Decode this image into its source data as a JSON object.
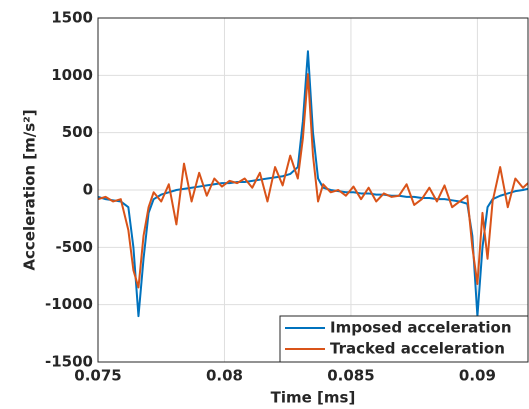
{
  "chart_data": {
    "type": "line",
    "xlabel": "Time [ms]",
    "ylabel": "Acceleration [m/s²]",
    "x": [
      0.075,
      0.0753,
      0.0756,
      0.0759,
      0.0762,
      0.0764,
      0.0766,
      0.0768,
      0.077,
      0.0772,
      0.0775,
      0.0778,
      0.0781,
      0.0784,
      0.0787,
      0.079,
      0.0793,
      0.0796,
      0.0799,
      0.0802,
      0.0805,
      0.0808,
      0.0811,
      0.0814,
      0.0817,
      0.082,
      0.0823,
      0.0826,
      0.0829,
      0.0831,
      0.0833,
      0.0835,
      0.0837,
      0.0839,
      0.0842,
      0.0845,
      0.0848,
      0.0851,
      0.0854,
      0.0857,
      0.086,
      0.0863,
      0.0866,
      0.0869,
      0.0872,
      0.0875,
      0.0878,
      0.0881,
      0.0884,
      0.0887,
      0.089,
      0.0893,
      0.0896,
      0.0898,
      0.09,
      0.0902,
      0.0904,
      0.0906,
      0.0909,
      0.0912,
      0.0915,
      0.0918,
      0.092
    ],
    "series": [
      {
        "name": "Imposed acceleration",
        "color": "#0072bd",
        "values": [
          -60,
          -80,
          -90,
          -100,
          -150,
          -500,
          -1100,
          -600,
          -200,
          -80,
          -40,
          -20,
          0,
          10,
          20,
          30,
          40,
          50,
          60,
          60,
          70,
          70,
          80,
          90,
          100,
          110,
          120,
          140,
          200,
          600,
          1210,
          500,
          100,
          20,
          0,
          -10,
          -20,
          -20,
          -30,
          -30,
          -40,
          -40,
          -50,
          -50,
          -60,
          -60,
          -70,
          -70,
          -80,
          -80,
          -90,
          -100,
          -120,
          -400,
          -1100,
          -500,
          -150,
          -80,
          -50,
          -30,
          -10,
          0,
          10
        ]
      },
      {
        "name": "Tracked acceleration",
        "color": "#d95319",
        "values": [
          -80,
          -60,
          -100,
          -80,
          -350,
          -700,
          -850,
          -400,
          -150,
          -20,
          -100,
          50,
          -300,
          230,
          -100,
          150,
          -50,
          100,
          30,
          80,
          60,
          100,
          20,
          150,
          -100,
          200,
          40,
          300,
          100,
          450,
          1010,
          300,
          -100,
          50,
          -20,
          0,
          -50,
          30,
          -80,
          20,
          -100,
          -30,
          -60,
          -50,
          50,
          -130,
          -80,
          20,
          -100,
          40,
          -150,
          -100,
          -50,
          -500,
          -820,
          -200,
          -600,
          -100,
          200,
          -150,
          100,
          20,
          60
        ]
      }
    ],
    "xlim": [
      0.075,
      0.092
    ],
    "xticks": [
      0.075,
      0.08,
      0.085,
      0.09
    ],
    "ylim": [
      -1500,
      1500
    ],
    "yticks": [
      -1500,
      -1000,
      -500,
      0,
      500,
      1000,
      1500
    ],
    "grid": true,
    "legend": "lower right"
  }
}
